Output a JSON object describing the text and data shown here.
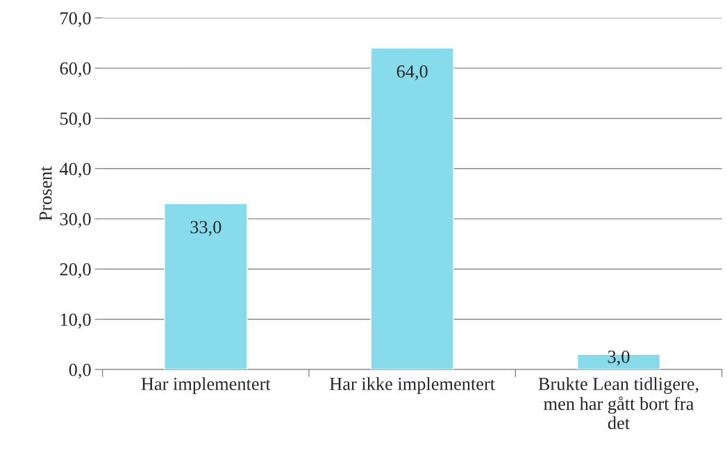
{
  "chart_data": {
    "type": "bar",
    "ylabel": "Prosent",
    "categories": [
      "Har implementert",
      "Har ikke implementert",
      "Brukte Lean tidligere,\nmen har gått bort fra\ndet"
    ],
    "values": [
      33.0,
      64.0,
      3.0
    ],
    "value_labels": [
      "33,0",
      "64,0",
      "3,0"
    ],
    "color": "#87dbeb",
    "ylim": [
      0,
      70
    ],
    "yticks": [
      {
        "value": 0,
        "label": "0,0"
      },
      {
        "value": 10,
        "label": "10,0"
      },
      {
        "value": 20,
        "label": "20,0"
      },
      {
        "value": 30,
        "label": "30,0"
      },
      {
        "value": 40,
        "label": "40,0"
      },
      {
        "value": 50,
        "label": "50,0"
      },
      {
        "value": 60,
        "label": "60,0"
      },
      {
        "value": 70,
        "label": "70,0"
      }
    ],
    "grid": "y",
    "legend": false
  }
}
